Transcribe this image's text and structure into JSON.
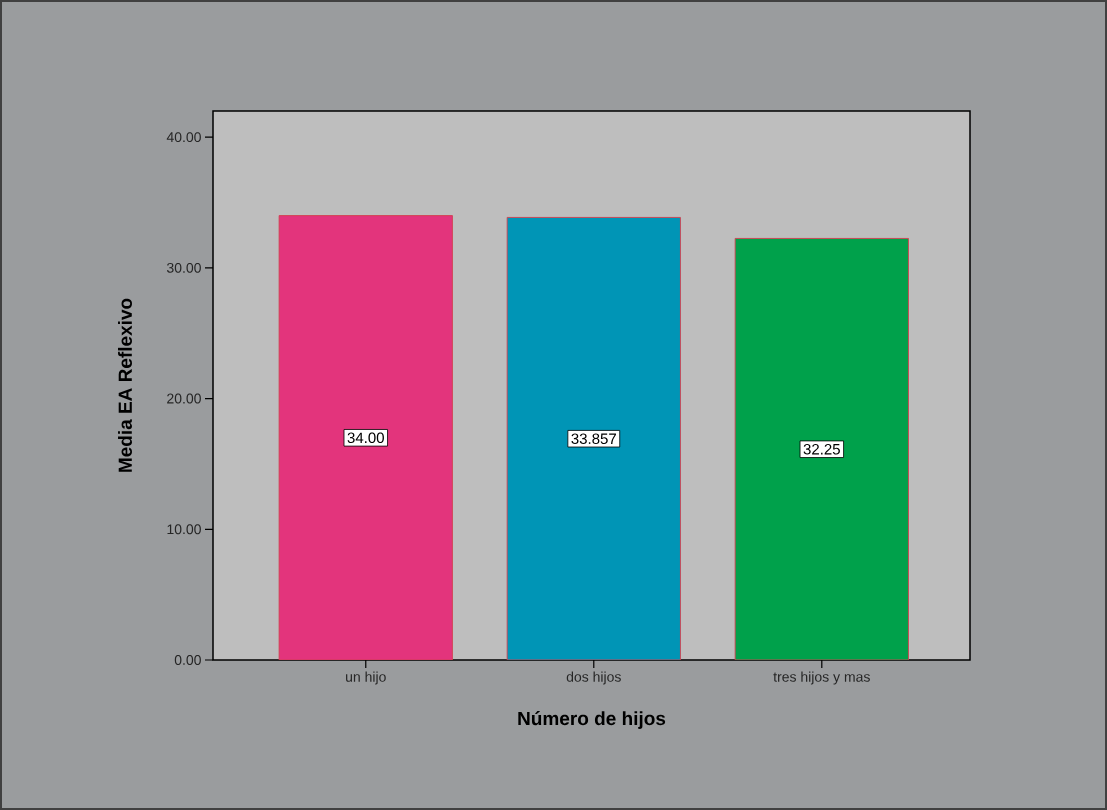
{
  "chart_data": {
    "type": "bar",
    "xlabel": "Número de hijos",
    "ylabel": "Media EA Reflexivo",
    "categories": [
      "un hijo",
      "dos hijos",
      "tres hijos y mas"
    ],
    "values": [
      34.0,
      33.857,
      32.25
    ],
    "colors": [
      "#e3347c",
      "#0095b6",
      "#00a14b"
    ],
    "value_labels": [
      "34.00",
      "33.857",
      "32.25"
    ],
    "ylim": [
      0,
      42
    ],
    "yticks": [
      {
        "value": 0,
        "label": "0.00"
      },
      {
        "value": 10,
        "label": "10.00"
      },
      {
        "value": 20,
        "label": "20.00"
      },
      {
        "value": 30,
        "label": "30.00"
      },
      {
        "value": 40,
        "label": "40.00"
      }
    ]
  }
}
